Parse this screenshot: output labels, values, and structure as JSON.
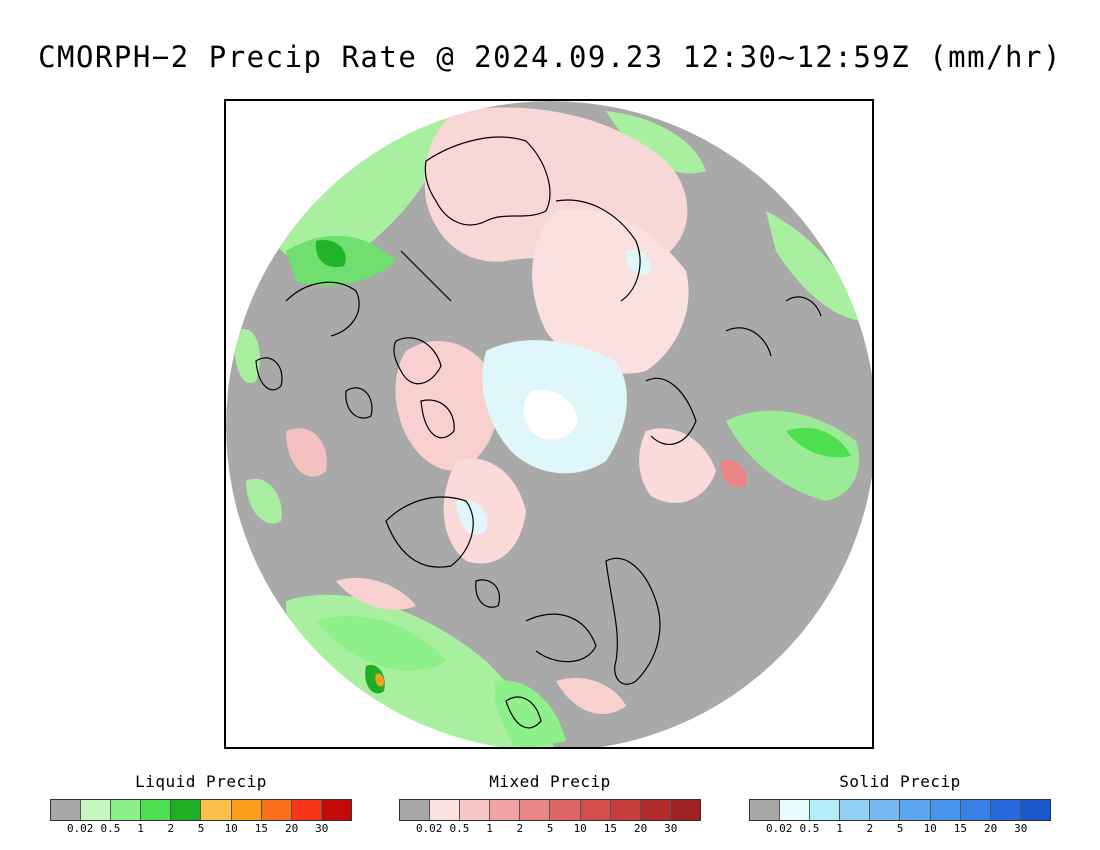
{
  "title": "CMORPH−2 Precip Rate @ 2024.09.23 12:30~12:59Z (mm/hr)",
  "map": {
    "projection": "north-polar-stereographic",
    "background_color": "#a9a9a9",
    "no_data_color": "#ffffff"
  },
  "legends": [
    {
      "key": "liquid",
      "title": "Liquid Precip",
      "colors": [
        "#a8a8a8",
        "#c6f7c0",
        "#8ef08a",
        "#4ddf4f",
        "#1fad26",
        "#fcc04a",
        "#fb9e1c",
        "#fb6e1a",
        "#f6341a",
        "#c40a08"
      ],
      "ticks": [
        "0.02",
        "0.5",
        "1",
        "2",
        "5",
        "10",
        "15",
        "20",
        "30"
      ]
    },
    {
      "key": "mixed",
      "title": "Mixed Precip",
      "colors": [
        "#a8a8a8",
        "#fde2e2",
        "#f8c7c7",
        "#f1a3a3",
        "#ea8585",
        "#df6666",
        "#d44d4d",
        "#c53c3c",
        "#b22c2c",
        "#9e2020"
      ],
      "ticks": [
        "0.02",
        "0.5",
        "1",
        "2",
        "5",
        "10",
        "15",
        "20",
        "30"
      ]
    },
    {
      "key": "solid",
      "title": "Solid Precip",
      "colors": [
        "#a8a8a8",
        "#e6fcff",
        "#b5ecfa",
        "#93cff7",
        "#77b8f3",
        "#5ea5f0",
        "#4a93ec",
        "#387fe6",
        "#2869de",
        "#1a57cc"
      ],
      "ticks": [
        "0.02",
        "0.5",
        "1",
        "2",
        "5",
        "10",
        "15",
        "20",
        "30"
      ]
    }
  ]
}
